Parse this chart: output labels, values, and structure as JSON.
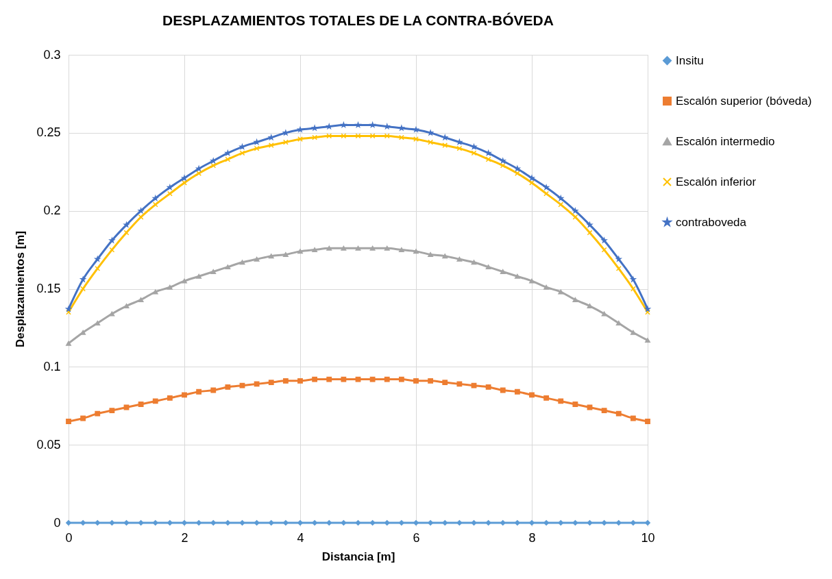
{
  "chart_data": {
    "type": "line",
    "title": "DESPLAZAMIENTOS TOTALES DE LA CONTRA-BÓVEDA",
    "xlabel": "Distancia [m]",
    "ylabel": "Desplazamientos  [m]",
    "x": [
      0,
      0.25,
      0.5,
      0.75,
      1,
      1.25,
      1.5,
      1.75,
      2,
      2.25,
      2.5,
      2.75,
      3,
      3.25,
      3.5,
      3.75,
      4,
      4.25,
      4.5,
      4.75,
      5,
      5.25,
      5.5,
      5.75,
      6,
      6.25,
      6.5,
      6.75,
      7,
      7.25,
      7.5,
      7.75,
      8,
      8.25,
      8.5,
      8.75,
      9,
      9.25,
      9.5,
      9.75,
      10
    ],
    "xlim": [
      0,
      10
    ],
    "xticks": [
      0,
      2,
      4,
      6,
      8,
      10
    ],
    "ylim": [
      0,
      0.3
    ],
    "yticks": [
      0,
      0.05,
      0.1,
      0.15,
      0.2,
      0.25,
      0.3
    ],
    "grid": true,
    "legend": "right",
    "series": [
      {
        "name": "Insitu",
        "color": "#5b9bd5",
        "marker": "diamond",
        "values": [
          0,
          0,
          0,
          0,
          0,
          0,
          0,
          0,
          0,
          0,
          0,
          0,
          0,
          0,
          0,
          0,
          0,
          0,
          0,
          0,
          0,
          0,
          0,
          0,
          0,
          0,
          0,
          0,
          0,
          0,
          0,
          0,
          0,
          0,
          0,
          0,
          0,
          0,
          0,
          0,
          0
        ]
      },
      {
        "name": "Escalón superior (bóveda)",
        "color": "#ed7d31",
        "marker": "square",
        "values": [
          0.065,
          0.067,
          0.07,
          0.072,
          0.074,
          0.076,
          0.078,
          0.08,
          0.082,
          0.084,
          0.085,
          0.087,
          0.088,
          0.089,
          0.09,
          0.091,
          0.091,
          0.092,
          0.092,
          0.092,
          0.092,
          0.092,
          0.092,
          0.092,
          0.091,
          0.091,
          0.09,
          0.089,
          0.088,
          0.087,
          0.085,
          0.084,
          0.082,
          0.08,
          0.078,
          0.076,
          0.074,
          0.072,
          0.07,
          0.067,
          0.065
        ]
      },
      {
        "name": "Escalón intermedio",
        "color": "#a5a5a5",
        "marker": "triangle",
        "values": [
          0.115,
          0.122,
          0.128,
          0.134,
          0.139,
          0.143,
          0.148,
          0.151,
          0.155,
          0.158,
          0.161,
          0.164,
          0.167,
          0.169,
          0.171,
          0.172,
          0.174,
          0.175,
          0.176,
          0.176,
          0.176,
          0.176,
          0.176,
          0.175,
          0.174,
          0.172,
          0.171,
          0.169,
          0.167,
          0.164,
          0.161,
          0.158,
          0.155,
          0.151,
          0.148,
          0.143,
          0.139,
          0.134,
          0.128,
          0.122,
          0.117
        ]
      },
      {
        "name": "Escalón inferior",
        "color": "#ffc000",
        "marker": "cross",
        "values": [
          0.135,
          0.15,
          0.163,
          0.175,
          0.186,
          0.196,
          0.204,
          0.211,
          0.218,
          0.224,
          0.229,
          0.233,
          0.237,
          0.24,
          0.242,
          0.244,
          0.246,
          0.247,
          0.248,
          0.248,
          0.248,
          0.248,
          0.248,
          0.247,
          0.246,
          0.244,
          0.242,
          0.24,
          0.237,
          0.233,
          0.229,
          0.224,
          0.218,
          0.211,
          0.204,
          0.196,
          0.186,
          0.175,
          0.163,
          0.15,
          0.135
        ]
      },
      {
        "name": "contraboveda",
        "color": "#4472c4",
        "marker": "star",
        "values": [
          0.137,
          0.156,
          0.169,
          0.181,
          0.191,
          0.2,
          0.208,
          0.215,
          0.221,
          0.227,
          0.232,
          0.237,
          0.241,
          0.244,
          0.247,
          0.25,
          0.252,
          0.253,
          0.254,
          0.255,
          0.255,
          0.255,
          0.254,
          0.253,
          0.252,
          0.25,
          0.247,
          0.244,
          0.241,
          0.237,
          0.232,
          0.227,
          0.221,
          0.215,
          0.208,
          0.2,
          0.191,
          0.181,
          0.169,
          0.156,
          0.137
        ]
      }
    ]
  }
}
